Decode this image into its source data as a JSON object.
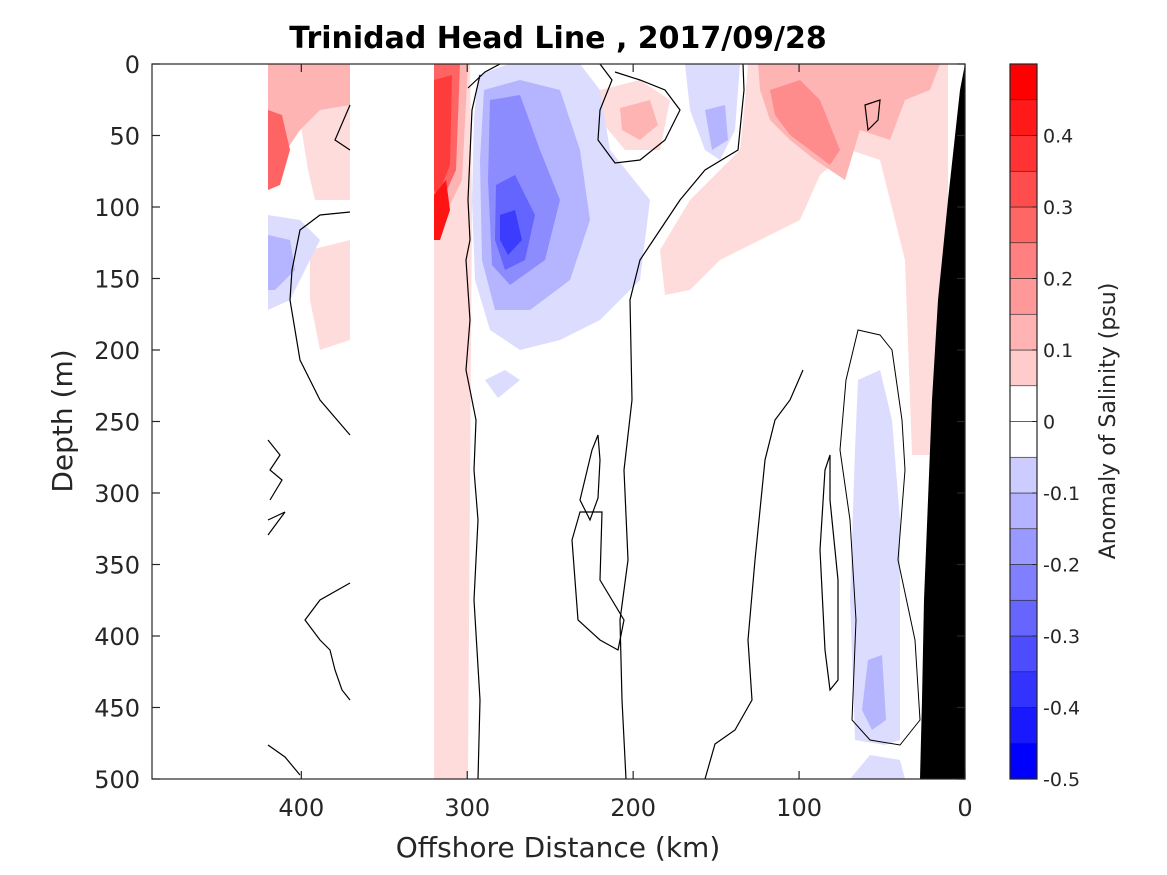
{
  "chart_data": {
    "type": "heatmap",
    "title": "Trinidad Head Line , 2017/09/28",
    "xlabel": "Offshore Distance (km)",
    "ylabel": "Depth (m)",
    "xlim": [
      490,
      0
    ],
    "ylim": [
      0,
      500
    ],
    "x_ticks": [
      400,
      300,
      200,
      100,
      0
    ],
    "y_ticks": [
      0,
      50,
      100,
      150,
      200,
      250,
      300,
      350,
      400,
      450,
      500
    ],
    "colorbar": {
      "label": "Anomaly of Salinity (psu)",
      "range": [
        -0.5,
        0.5
      ],
      "levels": 20,
      "ticks": [
        -0.5,
        -0.4,
        -0.3,
        -0.2,
        -0.1,
        0,
        0.1,
        0.2,
        0.3,
        0.4
      ],
      "colormap": "blue-white-red"
    },
    "bathymetry_color": "#000000",
    "features": [
      {
        "name": "near-shore saline core (upper ~100 m, 30-130 km offshore)",
        "x": 85,
        "depth": 55,
        "value": 0.2
      },
      {
        "name": "strong positive anomaly (~320 km offshore)",
        "x": 315,
        "depth": 115,
        "value": 0.45
      },
      {
        "name": "fresh core (~280 km offshore)",
        "x": 278,
        "depth": 120,
        "value": -0.38
      },
      {
        "name": "positive anomaly (~420 km offshore)",
        "x": 418,
        "depth": 75,
        "value": 0.3
      },
      {
        "name": "weak negative anomaly (~50 km offshore)",
        "x": 55,
        "depth": 380,
        "value": -0.1
      }
    ]
  }
}
